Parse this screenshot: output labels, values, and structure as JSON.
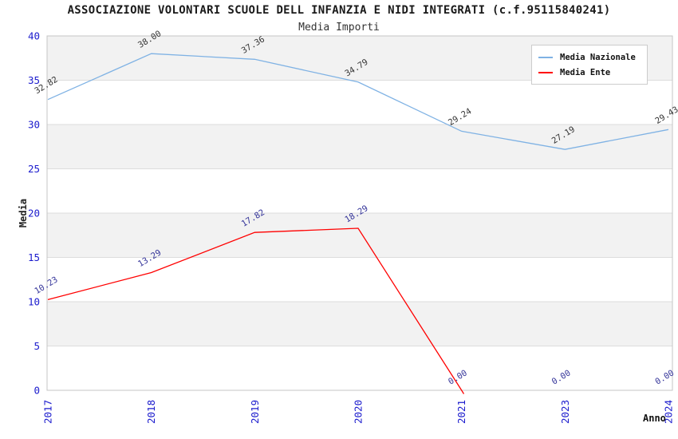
{
  "chart_data": {
    "type": "line",
    "title": "ASSOCIAZIONE VOLONTARI SCUOLE DELL INFANZIA E NIDI INTEGRATI (c.f.95115840241)",
    "subtitle": "Media Importi",
    "xlabel": "Anno",
    "ylabel": "Media",
    "x": [
      "2017",
      "2018",
      "2019",
      "2020",
      "2021",
      "2023",
      "2024"
    ],
    "ylim": [
      0,
      40
    ],
    "ytick_step": 5,
    "yticks": [
      0,
      5,
      10,
      15,
      20,
      25,
      30,
      35,
      40
    ],
    "grid": "horizontal gridlines with alternating gray bands",
    "legend_position": "top-right",
    "axis_tick_color": "#1a1acd",
    "band_color": "#f2f2f2",
    "gridline_color": "#dcdcdc",
    "border_color": "#c6c6c6",
    "series": [
      {
        "name": "Media Nazionale",
        "color": "#7fb2e4",
        "label_color": "#333333",
        "values": [
          32.82,
          38.0,
          37.36,
          34.79,
          29.24,
          27.19,
          29.43
        ],
        "labels": [
          "32.82",
          "38.00",
          "37.36",
          "34.79",
          "29.24",
          "27.19",
          "29.43"
        ]
      },
      {
        "name": "Media Ente",
        "color": "#ff0000",
        "label_color": "#333399",
        "values": [
          10.23,
          13.29,
          17.82,
          18.29,
          0.0,
          0.0,
          0.0
        ],
        "labels": [
          "10.23",
          "13.29",
          "17.82",
          "18.29",
          "0.00",
          "0.00",
          "0.00"
        ],
        "line_end_index": 4,
        "extend_below_axis": true
      }
    ]
  }
}
